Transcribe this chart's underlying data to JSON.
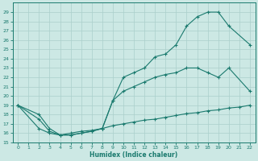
{
  "xlabel": "Humidex (Indice chaleur)",
  "background_color": "#cce8e4",
  "grid_color": "#aacfcb",
  "line_color": "#1a7a6e",
  "ylim": [
    15,
    30
  ],
  "xlim": [
    -0.5,
    22.5
  ],
  "yticks": [
    15,
    16,
    17,
    18,
    19,
    20,
    21,
    22,
    23,
    24,
    25,
    26,
    27,
    28,
    29
  ],
  "xticks": [
    0,
    1,
    2,
    3,
    4,
    5,
    6,
    7,
    8,
    9,
    10,
    11,
    12,
    13,
    14,
    15,
    16,
    17,
    18,
    19,
    20,
    21,
    22
  ],
  "curve_top_x": [
    0,
    2,
    3,
    4,
    5,
    6,
    7,
    8,
    9,
    10,
    11,
    12,
    13,
    14,
    15,
    16,
    17,
    18,
    19,
    20,
    22
  ],
  "curve_top_y": [
    19,
    18,
    16.5,
    15.8,
    15.8,
    16.0,
    16.2,
    16.5,
    19.5,
    22.0,
    22.5,
    23.0,
    24.2,
    24.5,
    25.5,
    27.5,
    28.5,
    29.0,
    29.0,
    27.5,
    25.5
  ],
  "curve_mid_x": [
    0,
    2,
    3,
    4,
    5,
    6,
    7,
    8,
    9,
    10,
    11,
    12,
    13,
    14,
    15,
    16,
    17,
    18,
    19,
    20,
    22
  ],
  "curve_mid_y": [
    19,
    17.5,
    16.2,
    15.8,
    15.8,
    16.0,
    16.2,
    16.5,
    19.5,
    20.5,
    21.0,
    21.5,
    22.0,
    22.3,
    22.5,
    23.0,
    23.0,
    22.5,
    22.0,
    23.0,
    20.5
  ],
  "curve_bot_x": [
    0,
    2,
    3,
    4,
    5,
    6,
    7,
    8,
    9,
    10,
    11,
    12,
    13,
    14,
    15,
    16,
    17,
    18,
    19,
    20,
    21,
    22
  ],
  "curve_bot_y": [
    19,
    16.5,
    16.0,
    15.8,
    16.0,
    16.2,
    16.3,
    16.5,
    16.8,
    17.0,
    17.2,
    17.4,
    17.5,
    17.7,
    17.9,
    18.1,
    18.2,
    18.4,
    18.5,
    18.7,
    18.8,
    19.0
  ]
}
